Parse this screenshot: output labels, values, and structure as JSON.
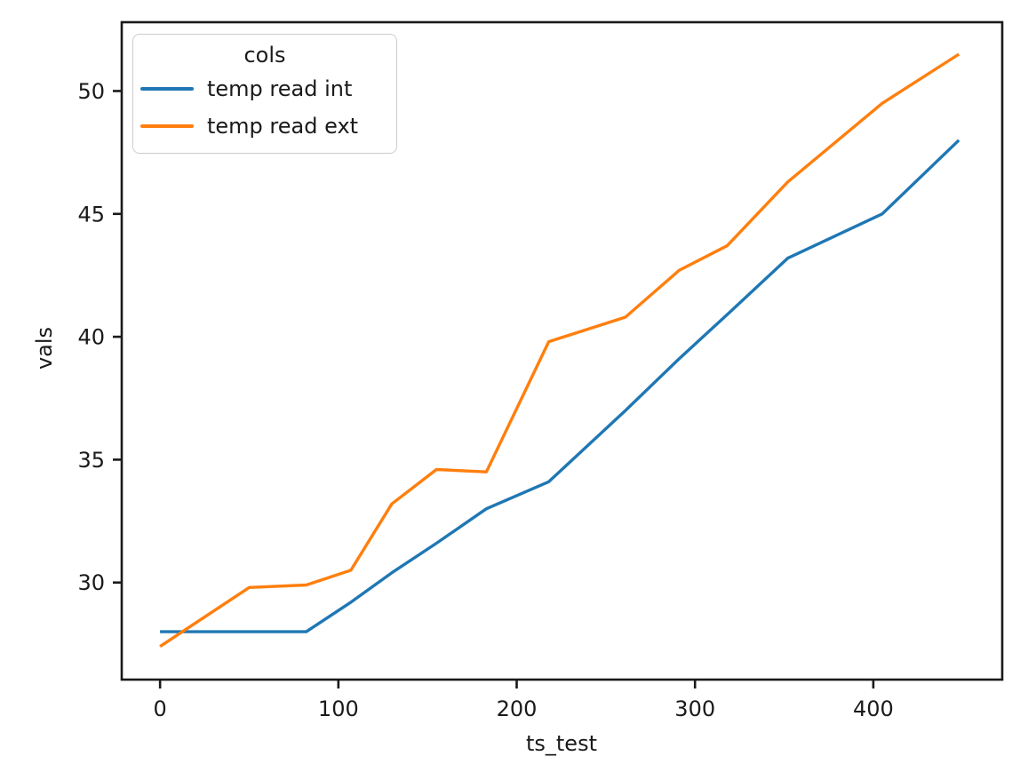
{
  "chart_data": {
    "type": "line",
    "title": "",
    "xlabel": "ts_test",
    "ylabel": "vals",
    "legend_title": "cols",
    "legend_position": "upper left",
    "grid": false,
    "x": [
      0,
      50,
      82,
      107,
      130,
      155,
      183,
      218,
      261,
      291,
      318,
      352,
      405,
      448
    ],
    "series": [
      {
        "name": "temp read int",
        "color": "#1f77b4",
        "values": [
          28,
          28,
          28,
          29.2,
          30.4,
          31.6,
          33,
          34.1,
          37,
          39.1,
          40.9,
          43.2,
          45,
          48
        ]
      },
      {
        "name": "temp read ext",
        "color": "#ff7f0e",
        "values": [
          27.4,
          29.8,
          29.9,
          30.5,
          33.2,
          34.6,
          34.5,
          39.8,
          40.8,
          42.7,
          43.7,
          46.3,
          49.5,
          51.5
        ]
      }
    ],
    "xlim": [
      -21.5,
      472.3
    ],
    "ylim": [
      26.05,
      52.8
    ],
    "x_ticks": [
      0,
      100,
      200,
      300,
      400
    ],
    "y_ticks": [
      30,
      35,
      40,
      45,
      50
    ],
    "axis_color": "#1a1a1a"
  }
}
